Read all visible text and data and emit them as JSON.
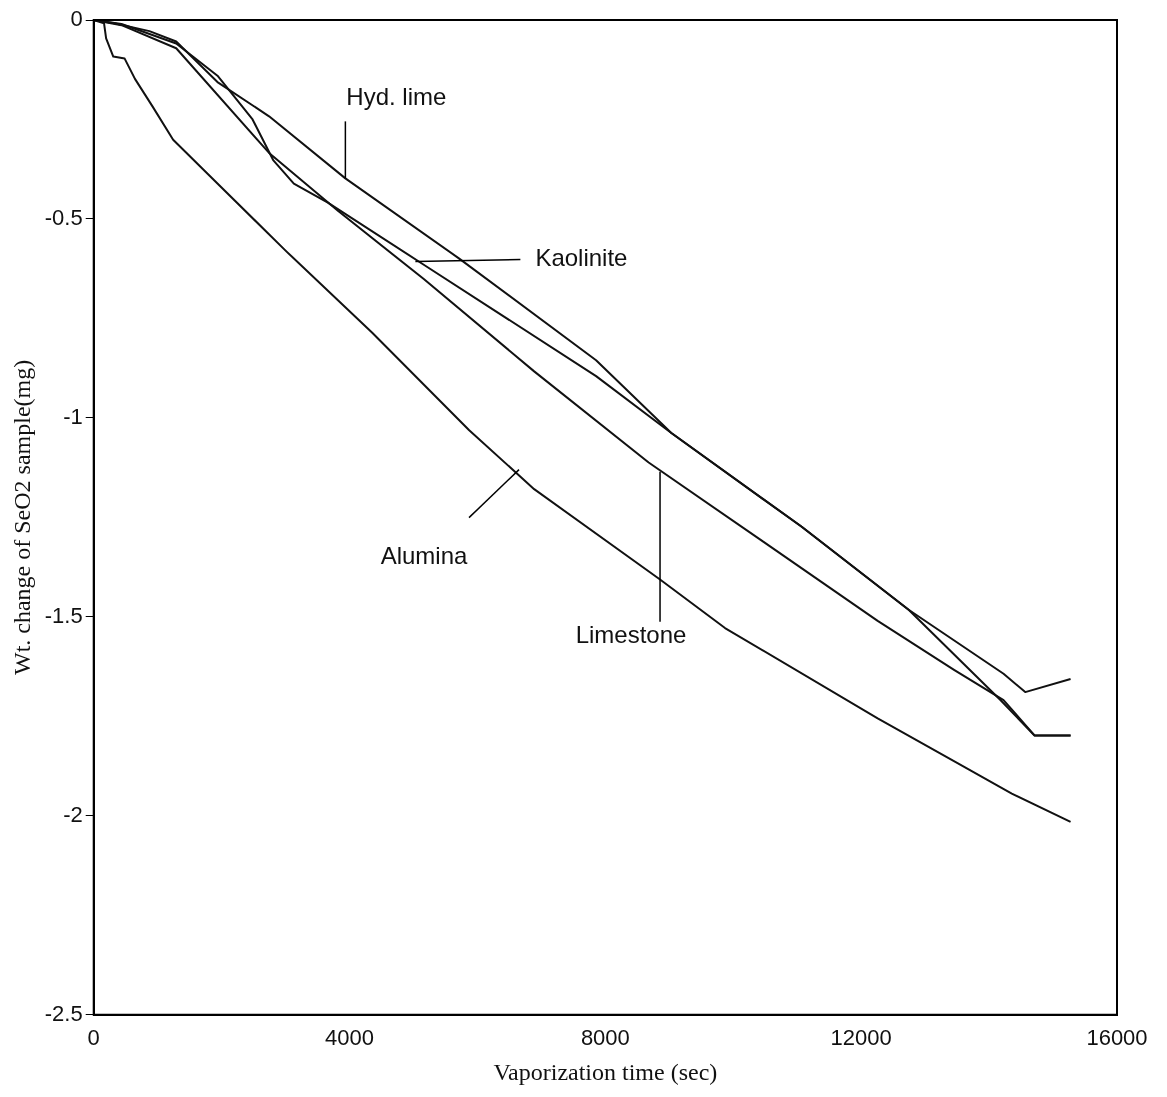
{
  "chart_data": {
    "type": "line",
    "xlabel": "Vaporization time (sec)",
    "ylabel": "Wt. change of SeO2 sample(mg)",
    "xlim": [
      0,
      16000
    ],
    "xticks": [
      0,
      4000,
      8000,
      12000,
      16000
    ],
    "ylim": [
      -2.5,
      0
    ],
    "yticks": [
      0,
      -0.5,
      -1,
      -1.5,
      -2,
      -2.5
    ],
    "grid": false,
    "legend": false,
    "marker": "none",
    "line_style": "solid",
    "series": [
      {
        "x": [
          0,
          323,
          871,
          1290,
          1935,
          2742,
          3935,
          5710,
          7855,
          9032,
          11065,
          12742,
          14226,
          14565,
          15274
        ],
        "values": [
          0,
          -0.008,
          -0.028,
          -0.054,
          -0.156,
          -0.242,
          -0.398,
          -0.599,
          -0.855,
          -1.038,
          -1.273,
          -1.482,
          -1.643,
          -1.689,
          -1.656
        ],
        "color": "#111111"
      },
      {
        "x": [
          0,
          435,
          1290,
          1935,
          2484,
          2806,
          3129,
          3661,
          5161,
          7855,
          9032,
          11065,
          12742,
          14177,
          14710,
          15274
        ],
        "values": [
          0,
          -0.01,
          -0.059,
          -0.14,
          -0.25,
          -0.352,
          -0.411,
          -0.459,
          -0.615,
          -0.895,
          -1.038,
          -1.273,
          -1.482,
          -1.709,
          -1.798,
          -1.798
        ],
        "color": "#111111"
      },
      {
        "x": [
          0,
          435,
          1290,
          2742,
          3823,
          5161,
          6887,
          8677,
          10468,
          12258,
          13452,
          14226,
          14710,
          15274
        ],
        "values": [
          0,
          -0.013,
          -0.071,
          -0.334,
          -0.48,
          -0.651,
          -0.883,
          -1.112,
          -1.311,
          -1.51,
          -1.633,
          -1.709,
          -1.798,
          -1.798
        ],
        "color": "#111111"
      },
      {
        "x": [
          0,
          161,
          194,
          306,
          484,
          645,
          919,
          1242,
          1935,
          3016,
          4355,
          5871,
          6887,
          8855,
          9871,
          12258,
          14355,
          15274
        ],
        "values": [
          0,
          -0.008,
          -0.046,
          -0.092,
          -0.097,
          -0.148,
          -0.217,
          -0.301,
          -0.411,
          -0.582,
          -0.786,
          -1.031,
          -1.179,
          -1.406,
          -1.528,
          -1.755,
          -1.944,
          -2.015
        ],
        "color": "#111111"
      }
    ],
    "annotations": [
      {
        "text": "Hyd. lime",
        "x": 3935,
        "y": -0.398
      },
      {
        "text": "Kaolinite",
        "x": 5030,
        "y": -0.607
      },
      {
        "text": "Alumina",
        "x": 6650,
        "y": -1.13
      },
      {
        "text": "Limestone",
        "x": 8855,
        "y": -1.135
      }
    ]
  }
}
